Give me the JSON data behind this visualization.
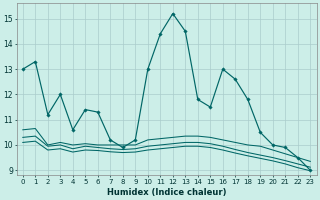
{
  "xlabel": "Humidex (Indice chaleur)",
  "bg_color": "#cceee8",
  "grid_color": "#aacccc",
  "line_color": "#006666",
  "xlim": [
    -0.5,
    23.5
  ],
  "ylim": [
    8.8,
    15.6
  ],
  "xticks": [
    0,
    1,
    2,
    3,
    4,
    5,
    6,
    7,
    8,
    9,
    10,
    11,
    12,
    13,
    14,
    15,
    16,
    17,
    18,
    19,
    20,
    21,
    22,
    23
  ],
  "yticks": [
    9,
    10,
    11,
    12,
    13,
    14,
    15
  ],
  "line1_x": [
    0,
    1,
    2,
    3,
    4,
    5,
    6,
    7,
    8,
    9,
    10,
    11,
    12,
    13,
    14,
    15,
    16,
    17,
    18,
    19,
    20,
    21,
    22,
    23
  ],
  "line1_y": [
    13.0,
    13.3,
    11.2,
    12.0,
    10.6,
    11.4,
    11.3,
    10.2,
    9.9,
    10.2,
    13.0,
    14.4,
    15.2,
    14.5,
    11.8,
    11.5,
    13.0,
    12.6,
    11.8,
    10.5,
    10.0,
    9.9,
    9.5,
    9.0
  ],
  "line2_x": [
    0,
    1,
    2,
    3,
    4,
    5,
    6,
    7,
    8,
    9,
    10,
    11,
    12,
    13,
    14,
    15,
    16,
    17,
    18,
    19,
    20,
    21,
    22,
    23
  ],
  "line2_y": [
    10.6,
    10.65,
    10.0,
    10.1,
    10.0,
    10.05,
    10.0,
    10.0,
    10.0,
    10.0,
    10.2,
    10.25,
    10.3,
    10.35,
    10.35,
    10.3,
    10.2,
    10.1,
    10.0,
    9.95,
    9.8,
    9.65,
    9.5,
    9.35
  ],
  "line3_x": [
    0,
    1,
    2,
    3,
    4,
    5,
    6,
    7,
    8,
    9,
    10,
    11,
    12,
    13,
    14,
    15,
    16,
    17,
    18,
    19,
    20,
    21,
    22,
    23
  ],
  "line3_y": [
    10.3,
    10.35,
    9.95,
    10.0,
    9.85,
    9.95,
    9.9,
    9.85,
    9.82,
    9.85,
    9.95,
    10.0,
    10.05,
    10.1,
    10.1,
    10.05,
    9.95,
    9.82,
    9.7,
    9.6,
    9.5,
    9.38,
    9.25,
    9.12
  ],
  "line4_x": [
    0,
    1,
    2,
    3,
    4,
    5,
    6,
    7,
    8,
    9,
    10,
    11,
    12,
    13,
    14,
    15,
    16,
    17,
    18,
    19,
    20,
    21,
    22,
    23
  ],
  "line4_y": [
    10.1,
    10.15,
    9.8,
    9.85,
    9.72,
    9.8,
    9.78,
    9.73,
    9.7,
    9.72,
    9.8,
    9.85,
    9.9,
    9.95,
    9.95,
    9.9,
    9.8,
    9.68,
    9.57,
    9.47,
    9.37,
    9.25,
    9.1,
    8.98
  ]
}
